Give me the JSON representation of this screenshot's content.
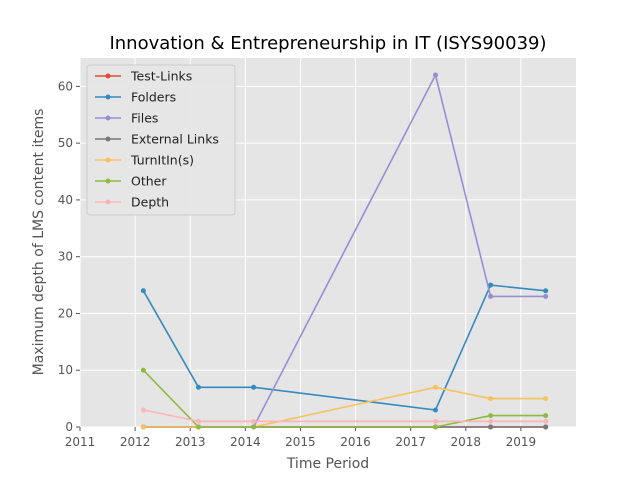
{
  "chart_data": {
    "type": "line",
    "title": "Innovation & Entrepreneurship in IT (ISYS90039)",
    "xlabel": "Time Period",
    "ylabel": "Maximum depth of LMS content items",
    "xlim": [
      2011,
      2020
    ],
    "ylim": [
      0,
      65
    ],
    "xticks": [
      2011,
      2012,
      2013,
      2014,
      2015,
      2016,
      2017,
      2018,
      2019
    ],
    "yticks": [
      0,
      10,
      20,
      30,
      40,
      50,
      60
    ],
    "grid": true,
    "legend_position": "top-left",
    "x": [
      2012.15,
      2013.15,
      2014.15,
      2017.45,
      2018.45,
      2019.45
    ],
    "series": [
      {
        "name": "Test-Links",
        "color": "#e24a33",
        "values": [
          0,
          0,
          0,
          0,
          0,
          0
        ]
      },
      {
        "name": "Folders",
        "color": "#348abd",
        "values": [
          24,
          7,
          7,
          3,
          25,
          24
        ]
      },
      {
        "name": "Files",
        "color": "#988ed5",
        "values": [
          0,
          0,
          0,
          62,
          23,
          23
        ]
      },
      {
        "name": "External Links",
        "color": "#777777",
        "values": [
          0,
          0,
          0,
          0,
          0,
          0
        ]
      },
      {
        "name": "TurnItIn(s)",
        "color": "#fbc15e",
        "values": [
          0,
          0,
          0,
          7,
          5,
          5
        ]
      },
      {
        "name": "Other",
        "color": "#8eba42",
        "values": [
          10,
          0,
          0,
          0,
          2,
          2
        ]
      },
      {
        "name": "Depth",
        "color": "#ffb5b8",
        "values": [
          3,
          1,
          1,
          1,
          1,
          1
        ]
      }
    ]
  },
  "colors": {
    "plot_background": "#e5e5e5",
    "grid": "#ffffff"
  }
}
